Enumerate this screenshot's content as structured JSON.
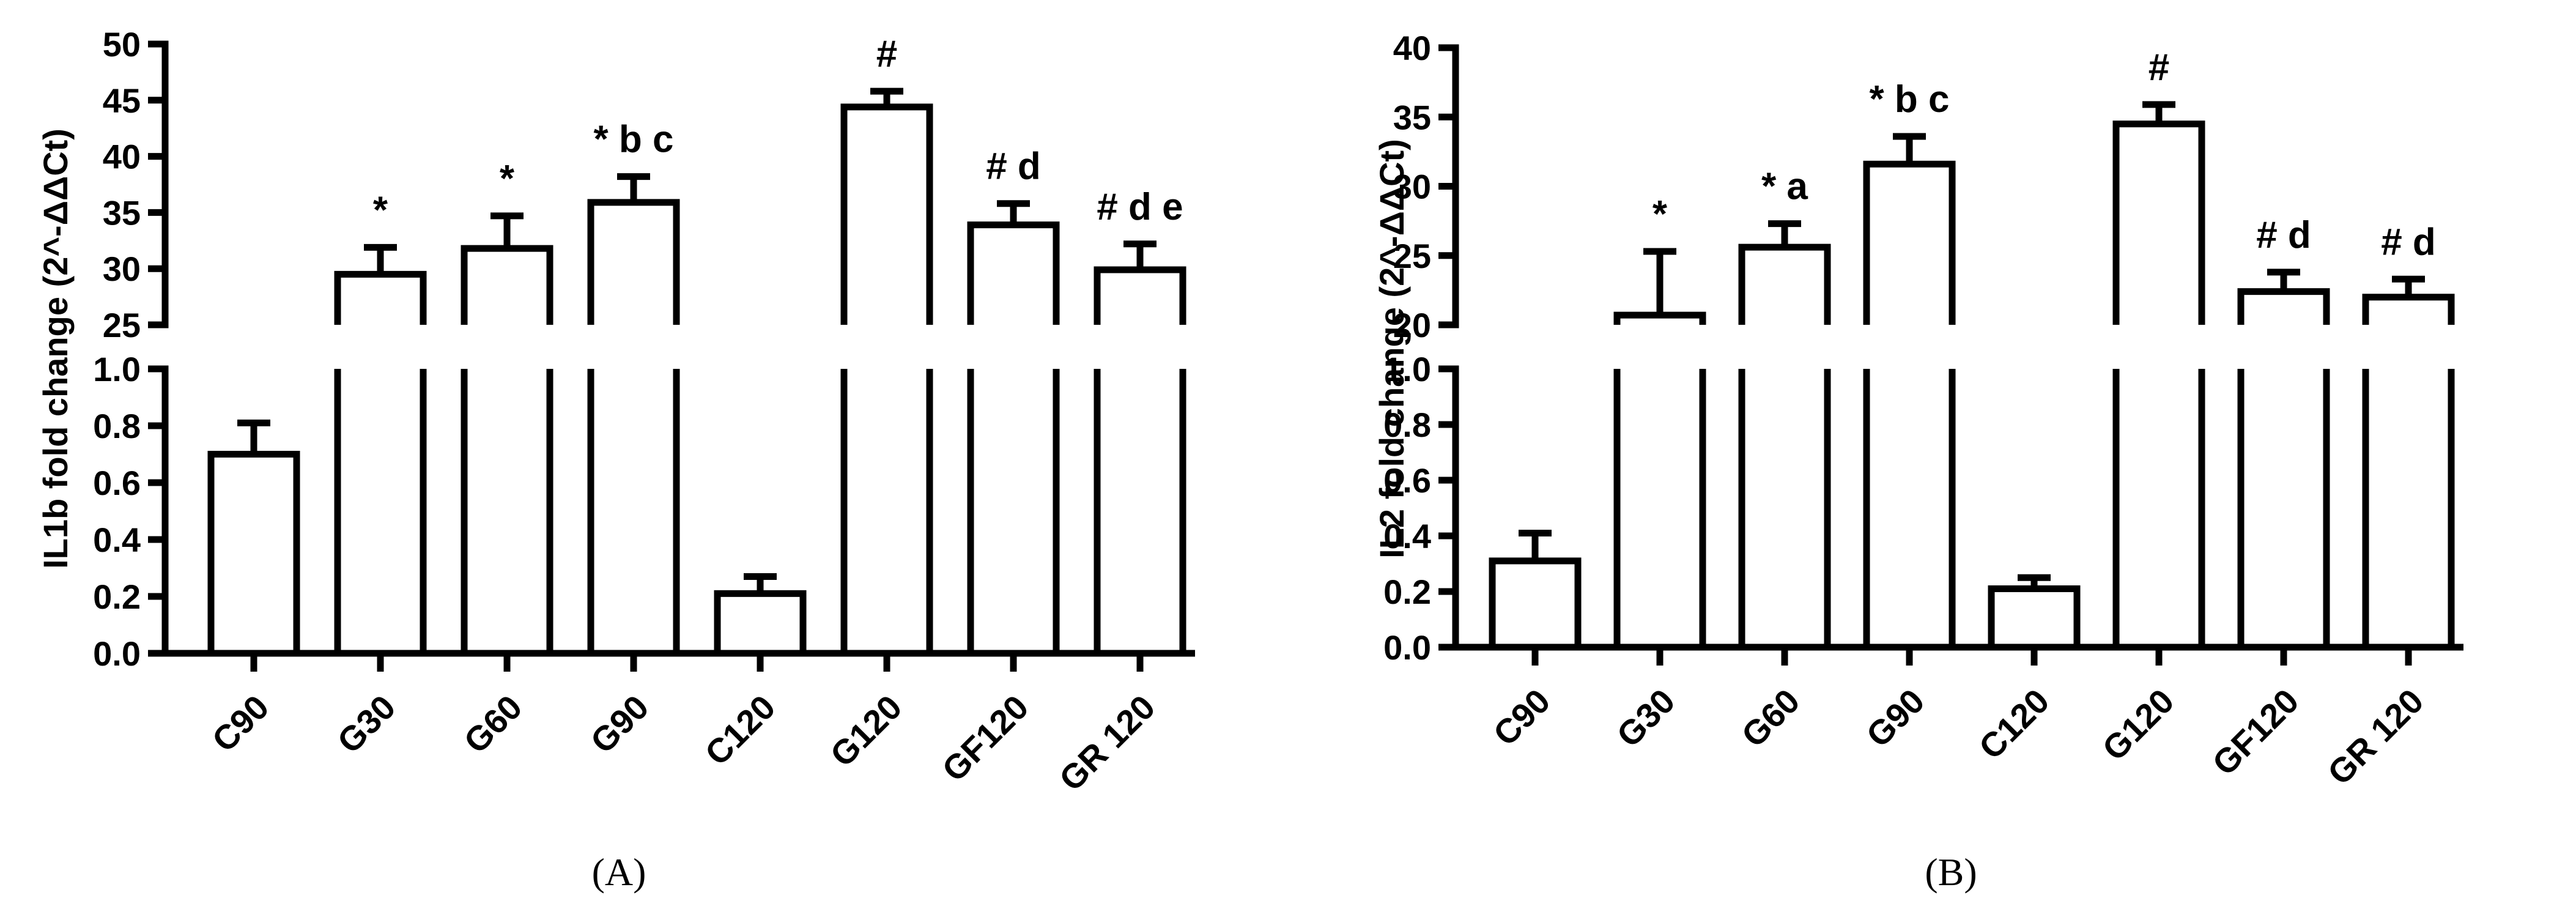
{
  "chart_data": [
    {
      "type": "bar",
      "panel_label": "(A)",
      "ylabel": "IL1b fold change (2^-ΔΔCt)",
      "categories": [
        "C90",
        "G30",
        "G60",
        "G90",
        "C120",
        "G120",
        "GF120",
        "GR 120"
      ],
      "values": [
        0.7,
        29.5,
        31.8,
        35.9,
        0.21,
        44.4,
        33.9,
        29.9
      ],
      "errors": [
        0.11,
        2.4,
        2.9,
        2.3,
        0.06,
        1.4,
        1.9,
        2.3
      ],
      "annotations": [
        "",
        "*",
        "*",
        "* b c",
        "",
        "#",
        "# d",
        "# d e"
      ],
      "axis_broken": true,
      "ylim_lower": [
        0,
        1.0
      ],
      "yticks_lower": [
        "0.0",
        "0.2",
        "0.4",
        "0.6",
        "0.8",
        "1.0"
      ],
      "ylim_upper": [
        25,
        50
      ],
      "yticks_upper": [
        "25",
        "30",
        "35",
        "40",
        "45",
        "50"
      ],
      "grid": false
    },
    {
      "type": "bar",
      "panel_label": "(B)",
      "ylabel": "IL2 fold change (2^-ΔΔCt)",
      "categories": [
        "C90",
        "G30",
        "G60",
        "G90",
        "C120",
        "G120",
        "GF120",
        "GR 120"
      ],
      "values": [
        0.31,
        20.7,
        25.6,
        31.6,
        0.21,
        34.5,
        22.4,
        22.0
      ],
      "errors": [
        0.1,
        4.6,
        1.7,
        2.0,
        0.04,
        1.4,
        1.4,
        1.3
      ],
      "annotations": [
        "",
        "*",
        "* a",
        "*  b c",
        "",
        "#",
        "# d",
        "# d"
      ],
      "axis_broken": true,
      "ylim_lower": [
        0,
        1.0
      ],
      "yticks_lower": [
        "0.0",
        "0.2",
        "0.4",
        "0.6",
        "0.8",
        "1.0"
      ],
      "ylim_upper": [
        20,
        40
      ],
      "yticks_upper": [
        "20",
        "25",
        "30",
        "35",
        "40"
      ],
      "grid": false
    }
  ]
}
